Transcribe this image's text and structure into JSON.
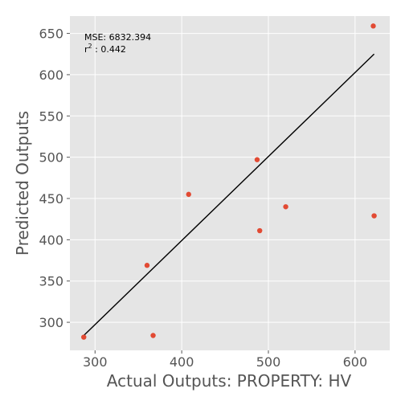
{
  "chart_data": {
    "type": "scatter",
    "title": "",
    "xlabel": "Actual Outputs: PROPERTY: HV",
    "ylabel": "Predicted Outputs",
    "xlim": [
      271,
      640
    ],
    "ylim": [
      266,
      671
    ],
    "xticks": [
      300,
      400,
      500,
      600
    ],
    "yticks": [
      300,
      350,
      400,
      450,
      500,
      550,
      600,
      650
    ],
    "xtick_labels": [
      "300",
      "400",
      "500",
      "600"
    ],
    "ytick_labels": [
      "300",
      "350",
      "400",
      "450",
      "500",
      "550",
      "600",
      "650"
    ],
    "grid": true,
    "points": [
      {
        "x": 287,
        "y": 282
      },
      {
        "x": 360,
        "y": 369
      },
      {
        "x": 367,
        "y": 284
      },
      {
        "x": 408,
        "y": 455
      },
      {
        "x": 487,
        "y": 497
      },
      {
        "x": 490,
        "y": 411
      },
      {
        "x": 520,
        "y": 440
      },
      {
        "x": 621,
        "y": 659
      },
      {
        "x": 622,
        "y": 429
      }
    ],
    "fit_line": {
      "x": [
        287,
        622
      ],
      "y": [
        284,
        625
      ]
    },
    "annotation": {
      "mse_text": "MSE: 6832.394",
      "r2_prefix": "r",
      "r2_exponent": "2",
      "r2_value": " : 0.442"
    },
    "colors": {
      "background": "#e5e5e5",
      "grid": "#ffffff",
      "points": "#e24a33",
      "fit_line": "#000000",
      "text": "#555555"
    }
  }
}
